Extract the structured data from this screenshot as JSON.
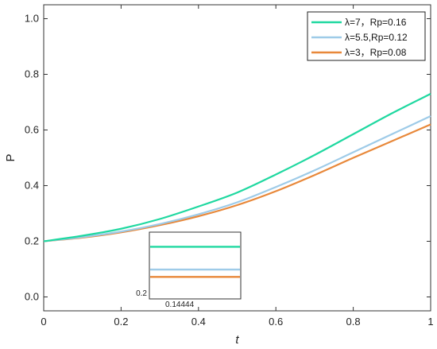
{
  "chart_data": {
    "type": "line",
    "xlabel": "t",
    "ylabel": "P",
    "xlim": [
      0,
      1
    ],
    "ylim": [
      -0.05,
      1.05
    ],
    "xticks": [
      "0",
      "0.2",
      "0.4",
      "0.6",
      "0.8",
      "1"
    ],
    "yticks": [
      "0.0",
      "0.2",
      "0.4",
      "0.6",
      "0.8",
      "1.0"
    ],
    "legend_position": "top-right",
    "series": [
      {
        "name": "λ=7，Rp=0.16",
        "color": "#1fd8a0",
        "x": [
          0,
          0.1,
          0.2,
          0.3,
          0.4,
          0.5,
          0.6,
          0.7,
          0.8,
          0.9,
          1.0
        ],
        "y": [
          0.2,
          0.22,
          0.245,
          0.28,
          0.325,
          0.375,
          0.44,
          0.51,
          0.585,
          0.66,
          0.73
        ]
      },
      {
        "name": "λ=5.5,Rp=0.12",
        "color": "#9ecbe8",
        "x": [
          0,
          0.1,
          0.2,
          0.3,
          0.4,
          0.5,
          0.6,
          0.7,
          0.8,
          0.9,
          1.0
        ],
        "y": [
          0.2,
          0.215,
          0.235,
          0.262,
          0.297,
          0.34,
          0.395,
          0.455,
          0.52,
          0.585,
          0.65
        ]
      },
      {
        "name": "λ=3，Rp=0.08",
        "color": "#e8883a",
        "x": [
          0,
          0.1,
          0.2,
          0.3,
          0.4,
          0.5,
          0.6,
          0.7,
          0.8,
          0.9,
          1.0
        ],
        "y": [
          0.2,
          0.213,
          0.232,
          0.258,
          0.29,
          0.33,
          0.38,
          0.438,
          0.5,
          0.56,
          0.62
        ]
      }
    ],
    "inset": {
      "xtick_label": "0.14444",
      "ytick_label": "0.2",
      "line_levels": [
        0.78,
        0.44,
        0.33
      ]
    }
  }
}
